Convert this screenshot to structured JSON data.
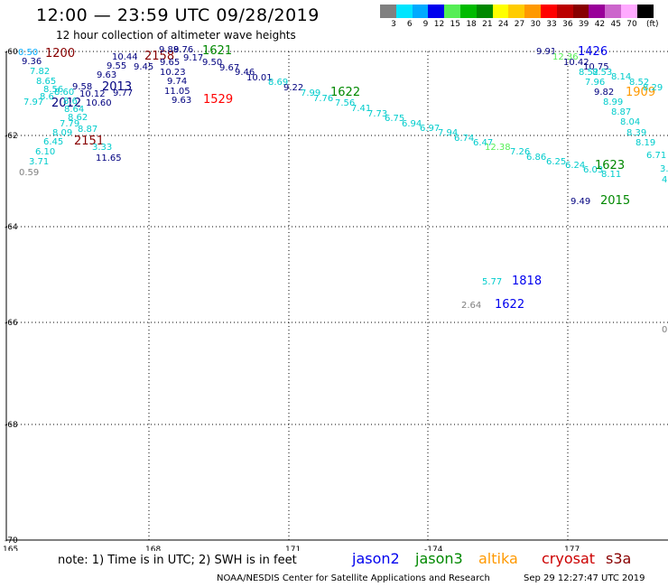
{
  "header": {
    "title": "12:00 — 23:59 UTC 09/28/2019",
    "subtitle": "12 hour collection of altimeter wave heights"
  },
  "legend": {
    "unit": "(ft)",
    "steps": [
      {
        "label": "3",
        "color": "#808080"
      },
      {
        "label": "6",
        "color": "#00e5ff"
      },
      {
        "label": "9",
        "color": "#00aaff"
      },
      {
        "label": "12",
        "color": "#0000ee"
      },
      {
        "label": "15",
        "color": "#55ee55"
      },
      {
        "label": "18",
        "color": "#00bb00"
      },
      {
        "label": "21",
        "color": "#008800"
      },
      {
        "label": "24",
        "color": "#ffff00"
      },
      {
        "label": "27",
        "color": "#ffcc00"
      },
      {
        "label": "30",
        "color": "#ff9900"
      },
      {
        "label": "33",
        "color": "#ff0000"
      },
      {
        "label": "36",
        "color": "#bb0000"
      },
      {
        "label": "39",
        "color": "#880000"
      },
      {
        "label": "42",
        "color": "#990099"
      },
      {
        "label": "45",
        "color": "#cc66cc"
      },
      {
        "label": "70",
        "color": "#ffaaff"
      },
      {
        "label": "",
        "color": "#000000"
      }
    ]
  },
  "map": {
    "lat_ticks": [
      "-60",
      "-62",
      "-64",
      "-66",
      "-68",
      "-70"
    ],
    "lon_ticks": [
      "165",
      "168",
      "171",
      "-174",
      "177"
    ],
    "readings": [
      {
        "t": "0.50",
        "c": "#00aaff"
      },
      {
        "t": "1200",
        "c": "#880000"
      },
      {
        "t": "9.36",
        "c": "#00007f"
      },
      {
        "t": "7.82",
        "c": "#00cccc"
      },
      {
        "t": "8.65",
        "c": "#00cccc"
      },
      {
        "t": "8.56",
        "c": "#00cccc"
      },
      {
        "t": "8.60",
        "c": "#00cccc"
      },
      {
        "t": "8.6",
        "c": "#00cccc"
      },
      {
        "t": "7.97",
        "c": "#00cccc"
      },
      {
        "t": "2012",
        "c": "#00007f"
      },
      {
        "t": "8.6",
        "c": "#00cccc"
      },
      {
        "t": "8.64",
        "c": "#00cccc"
      },
      {
        "t": "8.62",
        "c": "#00cccc"
      },
      {
        "t": "7.79",
        "c": "#00cccc"
      },
      {
        "t": "8.87",
        "c": "#00cccc"
      },
      {
        "t": "8.09",
        "c": "#00cccc"
      },
      {
        "t": "6.45",
        "c": "#00cccc"
      },
      {
        "t": "6.10",
        "c": "#00cccc"
      },
      {
        "t": "3.71",
        "c": "#00cccc"
      },
      {
        "t": "0.59",
        "c": "#808080"
      },
      {
        "t": "2151",
        "c": "#880000"
      },
      {
        "t": "3.33",
        "c": "#00cccc"
      },
      {
        "t": "11.65",
        "c": "#00007f"
      },
      {
        "t": "9.58",
        "c": "#00007f"
      },
      {
        "t": "10.12",
        "c": "#00007f"
      },
      {
        "t": "10.60",
        "c": "#00007f"
      },
      {
        "t": "2013",
        "c": "#00007f"
      },
      {
        "t": "9.63",
        "c": "#00007f"
      },
      {
        "t": "9.55",
        "c": "#00007f"
      },
      {
        "t": "10.44",
        "c": "#00007f"
      },
      {
        "t": "9.77",
        "c": "#00007f"
      },
      {
        "t": "9.45",
        "c": "#00007f"
      },
      {
        "t": "2158",
        "c": "#880000"
      },
      {
        "t": "9.88",
        "c": "#00007f"
      },
      {
        "t": "9.76",
        "c": "#00007f"
      },
      {
        "t": "1621",
        "c": "#008800"
      },
      {
        "t": "9.65",
        "c": "#00007f"
      },
      {
        "t": "10.23",
        "c": "#00007f"
      },
      {
        "t": "9.74",
        "c": "#00007f"
      },
      {
        "t": "11.05",
        "c": "#00007f"
      },
      {
        "t": "9.63",
        "c": "#00007f"
      },
      {
        "t": "1529",
        "c": "#ff0000"
      },
      {
        "t": "9.17",
        "c": "#00007f"
      },
      {
        "t": "9.50",
        "c": "#00007f"
      },
      {
        "t": "9.67",
        "c": "#00007f"
      },
      {
        "t": "9.46",
        "c": "#00007f"
      },
      {
        "t": "10.01",
        "c": "#00007f"
      },
      {
        "t": "8.69",
        "c": "#00cccc"
      },
      {
        "t": "9.22",
        "c": "#00007f"
      },
      {
        "t": "7.99",
        "c": "#00cccc"
      },
      {
        "t": "1622",
        "c": "#008800"
      },
      {
        "t": "7.76",
        "c": "#00cccc"
      },
      {
        "t": "7.56",
        "c": "#00cccc"
      },
      {
        "t": "7.41",
        "c": "#00cccc"
      },
      {
        "t": "7.73",
        "c": "#00cccc"
      },
      {
        "t": "6.75",
        "c": "#00cccc"
      },
      {
        "t": "6.94",
        "c": "#00cccc"
      },
      {
        "t": "6.97",
        "c": "#00cccc"
      },
      {
        "t": "7.94",
        "c": "#00cccc"
      },
      {
        "t": "6.74",
        "c": "#00cccc"
      },
      {
        "t": "6.47",
        "c": "#00cccc"
      },
      {
        "t": "12.38",
        "c": "#55ee55"
      },
      {
        "t": "7.26",
        "c": "#00cccc"
      },
      {
        "t": "6.86",
        "c": "#00cccc"
      },
      {
        "t": "6.25",
        "c": "#00cccc"
      },
      {
        "t": "6.24",
        "c": "#00cccc"
      },
      {
        "t": "6.03",
        "c": "#00cccc"
      },
      {
        "t": "1623",
        "c": "#008800"
      },
      {
        "t": "8.11",
        "c": "#00cccc"
      },
      {
        "t": "9.49",
        "c": "#00007f"
      },
      {
        "t": "2015",
        "c": "#008800"
      },
      {
        "t": "9.91",
        "c": "#00007f"
      },
      {
        "t": "12.36",
        "c": "#55ee55"
      },
      {
        "t": "10.42",
        "c": "#00007f"
      },
      {
        "t": "1426",
        "c": "#0000ee"
      },
      {
        "t": "10.75",
        "c": "#00007f"
      },
      {
        "t": "8.52",
        "c": "#00cccc"
      },
      {
        "t": "8.53",
        "c": "#00cccc"
      },
      {
        "t": "7.96",
        "c": "#00cccc"
      },
      {
        "t": "8.14",
        "c": "#00cccc"
      },
      {
        "t": "9.82",
        "c": "#00007f"
      },
      {
        "t": "8.52",
        "c": "#00cccc"
      },
      {
        "t": "1909",
        "c": "#ff9900"
      },
      {
        "t": "8.29",
        "c": "#00cccc"
      },
      {
        "t": "8.99",
        "c": "#00cccc"
      },
      {
        "t": "8.87",
        "c": "#00cccc"
      },
      {
        "t": "8.04",
        "c": "#00cccc"
      },
      {
        "t": "8.39",
        "c": "#00cccc"
      },
      {
        "t": "8.19",
        "c": "#00cccc"
      },
      {
        "t": "6.71",
        "c": "#00cccc"
      },
      {
        "t": "3.",
        "c": "#00cccc"
      },
      {
        "t": "4",
        "c": "#00cccc"
      },
      {
        "t": "5.77",
        "c": "#00cccc"
      },
      {
        "t": "1818",
        "c": "#0000ee"
      },
      {
        "t": "2.64",
        "c": "#808080"
      },
      {
        "t": "1622",
        "c": "#0000ee"
      },
      {
        "t": "0",
        "c": "#808080"
      }
    ]
  },
  "footer": {
    "note": "note:  1) Time is in UTC;  2) SWH is in feet",
    "satellites": [
      {
        "name": "jason2",
        "color": "#0000ee"
      },
      {
        "name": "jason3",
        "color": "#008800"
      },
      {
        "name": "altika",
        "color": "#ff9900"
      },
      {
        "name": "cryosat",
        "color": "#cc0000"
      },
      {
        "name": "s3a",
        "color": "#880000"
      }
    ],
    "credit": "NOAA/NESDIS Center for Satellite Applications and Research",
    "timestamp": "Sep 29 12:27:47 UTC 2019"
  }
}
